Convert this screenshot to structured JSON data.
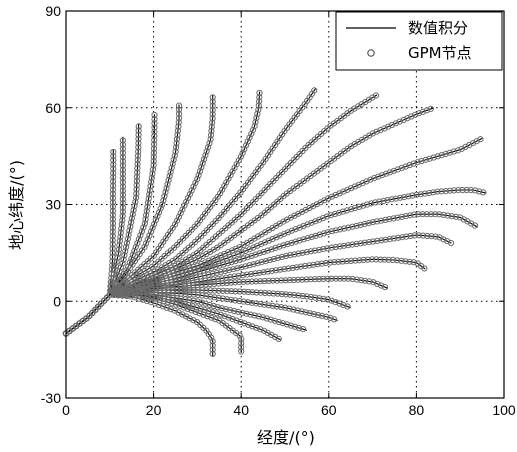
{
  "chart_data": {
    "type": "line",
    "xlabel": "经度/(°)",
    "ylabel": "地心纬度/(°)",
    "xlim": [
      0,
      100
    ],
    "ylim": [
      -30,
      90
    ],
    "xticks": [
      0,
      20,
      40,
      60,
      80,
      100
    ],
    "yticks": [
      -30,
      0,
      30,
      60,
      90
    ],
    "grid": true,
    "legend_position": "top-right",
    "legend": [
      {
        "label": "数值积分",
        "style": "solid line"
      },
      {
        "label": "GPM节点",
        "style": "open circle marker"
      }
    ],
    "series": [
      {
        "x": [
          0,
          5,
          10,
          10.6,
          10.7,
          10.7,
          10.8,
          10.8
        ],
        "y": [
          -10,
          -5,
          2,
          12,
          22,
          32,
          41,
          47
        ]
      },
      {
        "x": [
          0,
          5,
          10,
          12,
          13,
          13,
          13,
          13
        ],
        "y": [
          -10,
          -5,
          2,
          15,
          27,
          38,
          46,
          51
        ]
      },
      {
        "x": [
          0,
          5,
          10,
          13,
          16,
          16.5,
          16.6
        ],
        "y": [
          -10,
          -5,
          2,
          12,
          32,
          47,
          55
        ]
      },
      {
        "x": [
          0,
          5,
          10,
          14,
          18,
          20,
          20.2,
          20.2
        ],
        "y": [
          -10,
          -5,
          2,
          10,
          24,
          42,
          54,
          58
        ]
      },
      {
        "x": [
          0,
          5,
          10,
          14,
          18,
          22,
          25,
          25.8,
          25.8
        ],
        "y": [
          -10,
          -5,
          2,
          9,
          17,
          30,
          46,
          56,
          61
        ]
      },
      {
        "x": [
          0,
          5,
          10,
          15,
          20,
          25,
          30,
          33,
          33.5,
          33.5
        ],
        "y": [
          -10,
          -5,
          2,
          8,
          14,
          24,
          38,
          50,
          57,
          64
        ]
      },
      {
        "x": [
          0,
          5,
          10,
          15,
          20,
          25,
          30,
          35,
          40,
          43,
          44,
          44.2
        ],
        "y": [
          -10,
          -5,
          2,
          7,
          11,
          17,
          24,
          33,
          45,
          54,
          60,
          65
        ]
      },
      {
        "x": [
          0,
          5,
          10,
          15,
          20,
          25,
          30,
          35,
          40,
          45,
          50,
          55,
          57
        ],
        "y": [
          -10,
          -5,
          2,
          6,
          9,
          13,
          19,
          26,
          34,
          43,
          53,
          62,
          66
        ]
      },
      {
        "x": [
          0,
          5,
          10,
          15,
          20,
          25,
          30,
          35,
          40,
          45,
          50,
          55,
          60,
          65,
          71
        ],
        "y": [
          -10,
          -5,
          2,
          5,
          8,
          11,
          15,
          21,
          27,
          34,
          41,
          48,
          54,
          59,
          64
        ]
      },
      {
        "x": [
          0,
          5,
          10,
          15,
          20,
          25,
          30,
          35,
          40,
          45,
          50,
          55,
          60,
          65,
          70,
          75,
          80,
          84
        ],
        "y": [
          -10,
          -5,
          2,
          5,
          7,
          10,
          13,
          17,
          22,
          27,
          33,
          38,
          43,
          48,
          52,
          55,
          58,
          60
        ]
      },
      {
        "x": [
          0,
          5,
          10,
          15,
          20,
          25,
          30,
          40,
          50,
          60,
          70,
          80,
          90,
          95
        ],
        "y": [
          -10,
          -5,
          2,
          4.5,
          6.5,
          9,
          11,
          17,
          25,
          32,
          38,
          43,
          47,
          50.5
        ]
      },
      {
        "x": [
          0,
          5,
          10,
          15,
          20,
          25,
          30,
          40,
          50,
          60,
          70,
          80,
          85,
          90,
          93,
          96
        ],
        "y": [
          -10,
          -5,
          2,
          4,
          6,
          8,
          10,
          15,
          21,
          26.5,
          30.5,
          33,
          34,
          34.5,
          34.5,
          33.5
        ]
      },
      {
        "x": [
          0,
          5,
          10,
          15,
          20,
          25,
          30,
          40,
          50,
          60,
          70,
          80,
          85,
          90,
          94
        ],
        "y": [
          -10,
          -5,
          2,
          4,
          5.5,
          7,
          9,
          13,
          17.5,
          21.5,
          24.5,
          27,
          27,
          26,
          23
        ]
      },
      {
        "x": [
          0,
          5,
          10,
          15,
          20,
          25,
          30,
          40,
          50,
          60,
          70,
          80,
          85,
          88
        ],
        "y": [
          -10,
          -5,
          2,
          4,
          5,
          6,
          7.5,
          10.5,
          14,
          16.5,
          18.5,
          20.5,
          20,
          18
        ]
      },
      {
        "x": [
          0,
          5,
          10,
          15,
          20,
          25,
          30,
          40,
          50,
          60,
          70,
          75,
          80,
          82
        ],
        "y": [
          -10,
          -5,
          2,
          3.5,
          4.5,
          5,
          6,
          8,
          10,
          12,
          13,
          12.8,
          12,
          10
        ]
      },
      {
        "x": [
          0,
          5,
          10,
          15,
          20,
          25,
          30,
          40,
          50,
          60,
          65,
          70,
          73.5
        ],
        "y": [
          -10,
          -5,
          2,
          3.5,
          4,
          4.5,
          5,
          6,
          6.5,
          7,
          7,
          6,
          4
        ]
      },
      {
        "x": [
          0,
          5,
          10,
          15,
          20,
          25,
          30,
          40,
          50,
          55,
          60,
          63,
          65
        ],
        "y": [
          -10,
          -5,
          2,
          3,
          3.5,
          3.5,
          3.5,
          3,
          2.2,
          1.5,
          0.5,
          -1,
          -2
        ]
      },
      {
        "x": [
          0,
          5,
          10,
          15,
          20,
          25,
          30,
          40,
          50,
          55,
          60,
          62
        ],
        "y": [
          -10,
          -5,
          2,
          2.8,
          2.8,
          2.5,
          2,
          0,
          -2,
          -3.5,
          -5,
          -6
        ]
      },
      {
        "x": [
          0,
          5,
          10,
          15,
          20,
          30,
          35,
          40,
          45,
          50,
          55
        ],
        "y": [
          -10,
          -5,
          2,
          2.5,
          2,
          0,
          -2,
          -3.5,
          -5,
          -7,
          -9
        ]
      },
      {
        "x": [
          0,
          5,
          10,
          15,
          20,
          25,
          30,
          35,
          40,
          45,
          49
        ],
        "y": [
          -10,
          -5,
          2,
          2,
          1.5,
          0,
          -2,
          -4,
          -6.5,
          -9,
          -12
        ]
      },
      {
        "x": [
          0,
          5,
          10,
          15,
          20,
          25,
          30,
          35,
          38,
          40,
          40,
          40
        ],
        "y": [
          -10,
          -5,
          2,
          2,
          1,
          -1,
          -3.5,
          -6,
          -9,
          -11,
          -14,
          -16
        ]
      },
      {
        "x": [
          0,
          5,
          10,
          15,
          20,
          25,
          30,
          32,
          33.5,
          33.5,
          33.5
        ],
        "y": [
          -10,
          -5,
          2,
          1.5,
          -0.5,
          -3,
          -6.5,
          -9,
          -12,
          -14,
          -17
        ]
      }
    ]
  }
}
